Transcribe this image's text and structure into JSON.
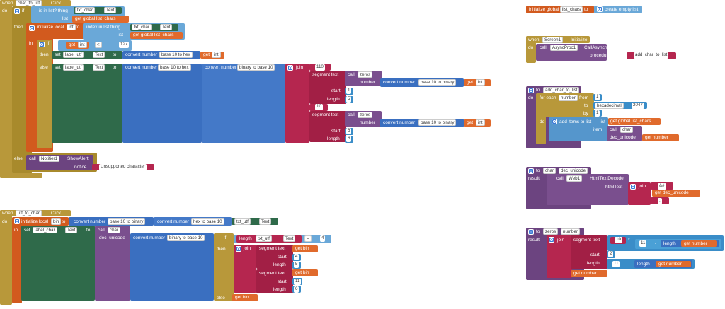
{
  "blocks": {
    "char_to_utf": {
      "when": "when",
      "component": "char_to_utf",
      "event": "Click",
      "do": "do",
      "if": "if",
      "then": "then",
      "else": "else",
      "is_in_list": "is in list? thing",
      "txt_char": "txt_char",
      "text_prop": "Text",
      "list": "list",
      "get_global_list_chars": "get global list_chars",
      "initialize_local": "initialize local",
      "int": "int",
      "to": "to",
      "index_in_list": "index in list  thing",
      "in": "in",
      "get": "get",
      "lt": "<",
      "n127": "127",
      "set": "set",
      "label_utf": "label_utf",
      "to2": "to",
      "convert_number": "convert number",
      "base10_to_hex": "base 10 to hex",
      "binary_to_base10": "binary to base 10",
      "join": "join",
      "n110": "110",
      "segment": "segment  text",
      "call": "call",
      "zeros": "zeros",
      "number": "number",
      "base10_to_binary": "base 10 to binary",
      "start": "start",
      "length": "length",
      "n1": "1",
      "n5": "5",
      "n10": "10",
      "n6": "6",
      "notifier": "Notifier1",
      "show_alert": "ShowAlert",
      "notice": "notice",
      "unsupported": "Unsupported character"
    },
    "init_global": {
      "label": "initialize global",
      "name": "list_chars",
      "to": "to",
      "create_empty": "create empty list"
    },
    "screen_init": {
      "when": "when",
      "screen": "Screen1",
      "event": "Initialize",
      "do": "do",
      "call": "call",
      "async": "AsyncProc1",
      "method": "CallAsynchronous",
      "procedure_name": "procedureName",
      "proc_value": "add_char_to_list"
    },
    "add_char_to_list": {
      "to": "to",
      "name": "add_char_to_list",
      "do": "do",
      "for_each": "for each",
      "number": "number",
      "from": "from",
      "n1": "1",
      "to2": "to",
      "hexadecimal": "hexadecimal",
      "n2047": "2047",
      "by": "by",
      "add_items": "add items to list",
      "list": "list",
      "get_global": "get global list_chars",
      "item": "item",
      "call": "call",
      "char": "char",
      "dec_unicode": "dec_unicode",
      "get_number": "get number"
    },
    "char_proc": {
      "to": "to",
      "name": "char",
      "param": "dec_unicode",
      "result": "result",
      "call": "call",
      "web": "Web1",
      "method": "HtmlTextDecode",
      "html_text": "htmlText",
      "join": "join",
      "amp": "&#",
      "get_dec": "get dec_unicode",
      "semi": ";"
    },
    "zeros_proc": {
      "to": "to",
      "name": "zeros",
      "param": "number",
      "result": "result",
      "join": "join",
      "segment": "segment  text",
      "n10": "10",
      "mult": "*",
      "n11": "11",
      "minus": "-",
      "length": "length",
      "get_number": "get number",
      "start": "start",
      "n2": "2"
    },
    "utf_to_char": {
      "when": "when",
      "component": "utf_to_char",
      "event": "Click",
      "do": "do",
      "initialize_local": "initialize local",
      "bin": "bin",
      "to": "to",
      "convert_number": "convert number",
      "base10_to_binary": "base 10 to binary",
      "hex_to_base10": "hex to base 10",
      "txt_utf": "txt_utf",
      "text_prop": "Text",
      "in": "in",
      "set": "set",
      "label_char": "label_char",
      "to2": "to",
      "call": "call",
      "char": "char",
      "dec_unicode": "dec_unicode",
      "binary_to_base10": "binary to base 10",
      "if": "if",
      "length": "length",
      "eq": "=",
      "n4": "4",
      "then": "then",
      "join": "join",
      "segment": "segment  text",
      "get_bin": "get bin",
      "start": "start",
      "n4b": "4",
      "length2": "length",
      "n5": "5",
      "n11": "11",
      "n6": "6",
      "else": "else"
    }
  }
}
